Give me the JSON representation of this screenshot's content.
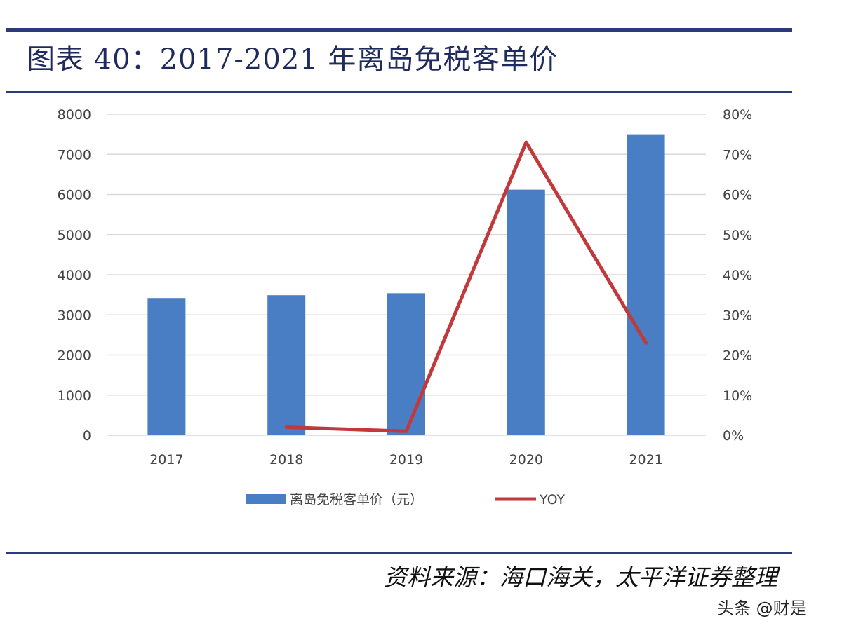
{
  "header": {
    "title": "图表 40：2017-2021 年离岛免税客单价"
  },
  "chart_data": {
    "type": "bar",
    "categories": [
      "2017",
      "2018",
      "2019",
      "2020",
      "2021"
    ],
    "series": [
      {
        "name": "离岛免税客单价（元）",
        "type": "bar",
        "axis": "left",
        "values": [
          3420,
          3490,
          3540,
          6120,
          7500
        ]
      },
      {
        "name": "YOY",
        "type": "line",
        "axis": "right",
        "values": [
          null,
          0.02,
          0.01,
          0.73,
          0.23
        ]
      }
    ],
    "y_left": {
      "lim": [
        0,
        8000
      ],
      "tick_labels": [
        "0",
        "1000",
        "2000",
        "3000",
        "4000",
        "5000",
        "6000",
        "7000",
        "8000"
      ]
    },
    "y_right": {
      "lim": [
        0,
        0.8
      ],
      "tick_labels": [
        "0%",
        "10%",
        "20%",
        "30%",
        "40%",
        "50%",
        "60%",
        "70%",
        "80%"
      ]
    },
    "grid": true,
    "legend_position": "bottom",
    "colors": {
      "bar": "#4a7ec4",
      "line": "#c0393b",
      "grid": "#d9d9d9"
    }
  },
  "footer": {
    "source": "资料来源：海口海关，太平洋证券整理",
    "watermark": "头条 @财是"
  }
}
